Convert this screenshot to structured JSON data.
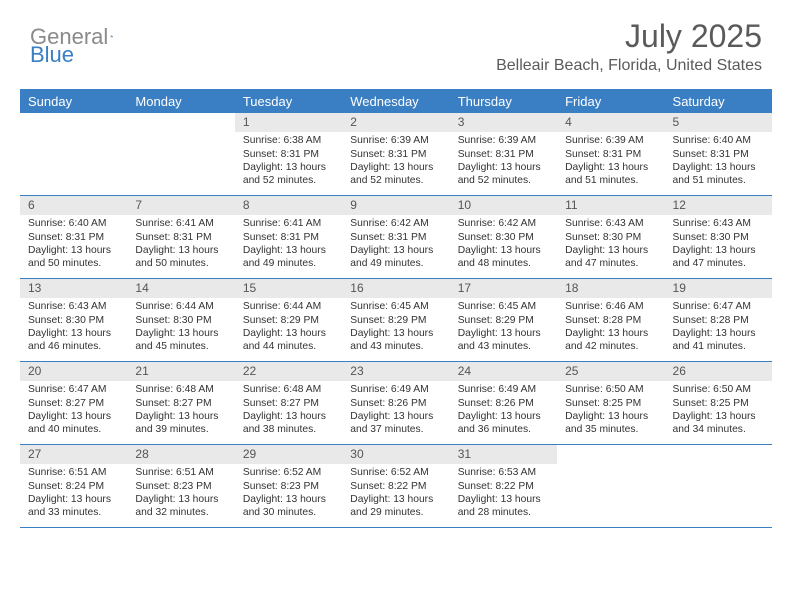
{
  "logo": {
    "general": "General",
    "blue": "Blue"
  },
  "title": "July 2025",
  "location": "Belleair Beach, Florida, United States",
  "colors": {
    "header_bg": "#3a7fc4",
    "header_text": "#ffffff",
    "daynum_bg": "#e9e9e9",
    "border": "#3a7fc4",
    "body_text": "#333333",
    "title_text": "#5a5a5a"
  },
  "weekdays": [
    "Sunday",
    "Monday",
    "Tuesday",
    "Wednesday",
    "Thursday",
    "Friday",
    "Saturday"
  ],
  "weeks": [
    [
      null,
      null,
      {
        "n": "1",
        "sr": "6:38 AM",
        "ss": "8:31 PM",
        "dl": "13 hours and 52 minutes."
      },
      {
        "n": "2",
        "sr": "6:39 AM",
        "ss": "8:31 PM",
        "dl": "13 hours and 52 minutes."
      },
      {
        "n": "3",
        "sr": "6:39 AM",
        "ss": "8:31 PM",
        "dl": "13 hours and 52 minutes."
      },
      {
        "n": "4",
        "sr": "6:39 AM",
        "ss": "8:31 PM",
        "dl": "13 hours and 51 minutes."
      },
      {
        "n": "5",
        "sr": "6:40 AM",
        "ss": "8:31 PM",
        "dl": "13 hours and 51 minutes."
      }
    ],
    [
      {
        "n": "6",
        "sr": "6:40 AM",
        "ss": "8:31 PM",
        "dl": "13 hours and 50 minutes."
      },
      {
        "n": "7",
        "sr": "6:41 AM",
        "ss": "8:31 PM",
        "dl": "13 hours and 50 minutes."
      },
      {
        "n": "8",
        "sr": "6:41 AM",
        "ss": "8:31 PM",
        "dl": "13 hours and 49 minutes."
      },
      {
        "n": "9",
        "sr": "6:42 AM",
        "ss": "8:31 PM",
        "dl": "13 hours and 49 minutes."
      },
      {
        "n": "10",
        "sr": "6:42 AM",
        "ss": "8:30 PM",
        "dl": "13 hours and 48 minutes."
      },
      {
        "n": "11",
        "sr": "6:43 AM",
        "ss": "8:30 PM",
        "dl": "13 hours and 47 minutes."
      },
      {
        "n": "12",
        "sr": "6:43 AM",
        "ss": "8:30 PM",
        "dl": "13 hours and 47 minutes."
      }
    ],
    [
      {
        "n": "13",
        "sr": "6:43 AM",
        "ss": "8:30 PM",
        "dl": "13 hours and 46 minutes."
      },
      {
        "n": "14",
        "sr": "6:44 AM",
        "ss": "8:30 PM",
        "dl": "13 hours and 45 minutes."
      },
      {
        "n": "15",
        "sr": "6:44 AM",
        "ss": "8:29 PM",
        "dl": "13 hours and 44 minutes."
      },
      {
        "n": "16",
        "sr": "6:45 AM",
        "ss": "8:29 PM",
        "dl": "13 hours and 43 minutes."
      },
      {
        "n": "17",
        "sr": "6:45 AM",
        "ss": "8:29 PM",
        "dl": "13 hours and 43 minutes."
      },
      {
        "n": "18",
        "sr": "6:46 AM",
        "ss": "8:28 PM",
        "dl": "13 hours and 42 minutes."
      },
      {
        "n": "19",
        "sr": "6:47 AM",
        "ss": "8:28 PM",
        "dl": "13 hours and 41 minutes."
      }
    ],
    [
      {
        "n": "20",
        "sr": "6:47 AM",
        "ss": "8:27 PM",
        "dl": "13 hours and 40 minutes."
      },
      {
        "n": "21",
        "sr": "6:48 AM",
        "ss": "8:27 PM",
        "dl": "13 hours and 39 minutes."
      },
      {
        "n": "22",
        "sr": "6:48 AM",
        "ss": "8:27 PM",
        "dl": "13 hours and 38 minutes."
      },
      {
        "n": "23",
        "sr": "6:49 AM",
        "ss": "8:26 PM",
        "dl": "13 hours and 37 minutes."
      },
      {
        "n": "24",
        "sr": "6:49 AM",
        "ss": "8:26 PM",
        "dl": "13 hours and 36 minutes."
      },
      {
        "n": "25",
        "sr": "6:50 AM",
        "ss": "8:25 PM",
        "dl": "13 hours and 35 minutes."
      },
      {
        "n": "26",
        "sr": "6:50 AM",
        "ss": "8:25 PM",
        "dl": "13 hours and 34 minutes."
      }
    ],
    [
      {
        "n": "27",
        "sr": "6:51 AM",
        "ss": "8:24 PM",
        "dl": "13 hours and 33 minutes."
      },
      {
        "n": "28",
        "sr": "6:51 AM",
        "ss": "8:23 PM",
        "dl": "13 hours and 32 minutes."
      },
      {
        "n": "29",
        "sr": "6:52 AM",
        "ss": "8:23 PM",
        "dl": "13 hours and 30 minutes."
      },
      {
        "n": "30",
        "sr": "6:52 AM",
        "ss": "8:22 PM",
        "dl": "13 hours and 29 minutes."
      },
      {
        "n": "31",
        "sr": "6:53 AM",
        "ss": "8:22 PM",
        "dl": "13 hours and 28 minutes."
      },
      null,
      null
    ]
  ],
  "labels": {
    "sunrise": "Sunrise:",
    "sunset": "Sunset:",
    "daylight": "Daylight:"
  }
}
